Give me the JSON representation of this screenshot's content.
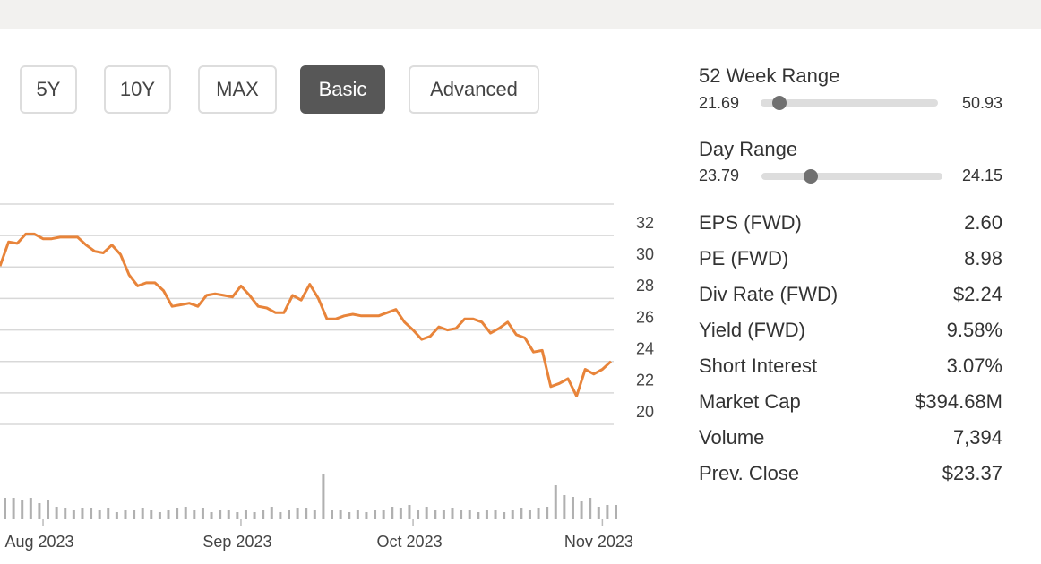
{
  "buttons": [
    "5Y",
    "10Y",
    "MAX",
    "Basic",
    "Advanced"
  ],
  "chart_data": {
    "type": "line",
    "categories": [
      null,
      null,
      null,
      null,
      null,
      "Aug 2023",
      null,
      null,
      null,
      null,
      null,
      null,
      null,
      null,
      null,
      null,
      null,
      null,
      null,
      null,
      null,
      null,
      null,
      null,
      null,
      null,
      null,
      null,
      "Sep 2023",
      null,
      null,
      null,
      null,
      null,
      null,
      null,
      null,
      null,
      null,
      null,
      null,
      null,
      null,
      null,
      null,
      null,
      null,
      null,
      "Oct 2023",
      null,
      null,
      null,
      null,
      null,
      null,
      null,
      null,
      null,
      null,
      null,
      null,
      null,
      null,
      null,
      null,
      null,
      null,
      null,
      null,
      null,
      "Nov 2023",
      null
    ],
    "values": [
      30.06,
      31.6,
      31.5,
      32.1,
      32.1,
      31.8,
      31.8,
      31.9,
      31.9,
      31.9,
      31.4,
      31.0,
      30.9,
      31.4,
      30.8,
      29.5,
      28.8,
      29.0,
      29.0,
      28.5,
      27.5,
      27.6,
      27.7,
      27.5,
      28.2,
      28.3,
      28.2,
      28.1,
      28.8,
      28.2,
      27.5,
      27.4,
      27.1,
      27.1,
      28.2,
      27.9,
      28.9,
      28.0,
      26.7,
      26.7,
      26.9,
      27.0,
      26.9,
      26.9,
      26.9,
      27.1,
      27.3,
      26.5,
      26.0,
      25.4,
      25.6,
      26.2,
      26.0,
      26.1,
      26.7,
      26.7,
      26.5,
      25.8,
      26.1,
      26.5,
      25.7,
      25.5,
      24.6,
      24.7,
      22.4,
      22.6,
      22.9,
      21.8,
      23.5,
      23.2,
      23.5,
      24.0
    ],
    "color": "#e8843a",
    "ylim": [
      20,
      34
    ],
    "yticks": [
      20,
      22,
      24,
      26,
      28,
      30,
      32
    ],
    "grid": true,
    "volume": [
      24,
      24,
      22,
      24,
      18,
      22,
      14,
      12,
      10,
      12,
      12,
      10,
      12,
      8,
      10,
      10,
      12,
      10,
      8,
      10,
      12,
      14,
      10,
      12,
      8,
      10,
      10,
      8,
      10,
      8,
      10,
      14,
      8,
      10,
      12,
      12,
      10,
      50,
      10,
      10,
      8,
      10,
      8,
      10,
      10,
      14,
      12,
      16,
      10,
      14,
      10,
      10,
      12,
      10,
      10,
      8,
      10,
      10,
      8,
      10,
      12,
      10,
      12,
      14,
      38,
      27,
      25,
      20,
      24,
      14,
      16,
      16
    ],
    "volume_color": "#b0b0b0",
    "volume_lim": [
      0,
      60
    ]
  },
  "ranges": [
    {
      "label": "52 Week Range",
      "low": "21.69",
      "high": "50.93"
    },
    {
      "label": "Day Range",
      "low": "23.79",
      "high": "24.15"
    }
  ],
  "stats": [
    {
      "label": "EPS (FWD)",
      "value": "2.60"
    },
    {
      "label": "PE (FWD)",
      "value": "8.98"
    },
    {
      "label": "Div Rate (FWD)",
      "value": "$2.24"
    },
    {
      "label": "Yield (FWD)",
      "value": "9.58%"
    },
    {
      "label": "Short Interest",
      "value": "3.07%"
    },
    {
      "label": "Market Cap",
      "value": "$394.68M"
    },
    {
      "label": "Volume",
      "value": "7,394"
    },
    {
      "label": "Prev. Close",
      "value": "$23.37"
    }
  ]
}
